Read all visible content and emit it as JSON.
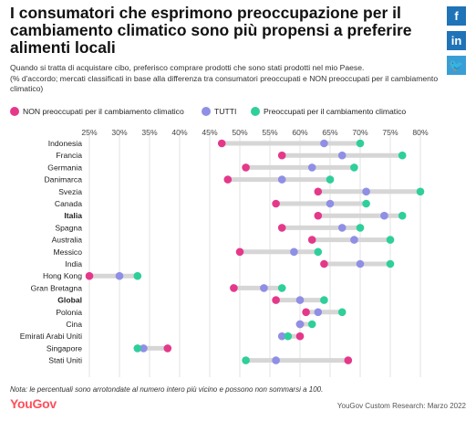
{
  "header": {
    "title": "I consumatori che esprimono preoccupazione per il cambiamento climatico sono più propensi a preferire alimenti locali",
    "subtitle_line1": "Quando si tratta di acquistare cibo, preferisco comprare prodotti che sono stati prodotti nel mio Paese.",
    "subtitle_line2": "(% d'accordo; mercati classificati in base alla differenza tra consumatori preoccupati e NON preoccupati per il cambiamento climatico)"
  },
  "share": {
    "facebook": "f",
    "linkedin": "in",
    "twitter": "🐦"
  },
  "legend": [
    {
      "label": "NON preoccupati per il cambiamento climatico",
      "color": "#e4398a"
    },
    {
      "label": "TUTTI",
      "color": "#8f8fe6"
    },
    {
      "label": "Preoccupati per il cambiamento climatico",
      "color": "#2fcf9b"
    }
  ],
  "footer": {
    "note": "Nota: le percentuali sono arrotondate al numero intero più vicino e possono non sommarsi a 100.",
    "logo": "YouGov",
    "source": "YouGov Custom Research: Marzo 2022"
  },
  "chart_data": {
    "type": "dot-plot",
    "x_ticks": [
      "25%",
      "30%",
      "35%",
      "40%",
      "45%",
      "50%",
      "55%",
      "60%",
      "65%",
      "70%",
      "75%",
      "80%"
    ],
    "xlim": [
      25,
      80
    ],
    "grid": true,
    "legend_position": "top-left",
    "series": [
      {
        "name": "NON preoccupati per il cambiamento climatico",
        "color": "#e4398a"
      },
      {
        "name": "TUTTI",
        "color": "#8f8fe6"
      },
      {
        "name": "Preoccupati per il cambiamento climatico",
        "color": "#2fcf9b"
      }
    ],
    "rows": [
      {
        "label": "Indonesia",
        "bold": false,
        "values": [
          47,
          64,
          70
        ]
      },
      {
        "label": "Francia",
        "bold": false,
        "values": [
          57,
          67,
          77
        ]
      },
      {
        "label": "Germania",
        "bold": false,
        "values": [
          51,
          62,
          69
        ]
      },
      {
        "label": "Danimarca",
        "bold": false,
        "values": [
          48,
          57,
          65
        ]
      },
      {
        "label": "Svezia",
        "bold": false,
        "values": [
          63,
          71,
          80
        ]
      },
      {
        "label": "Canada",
        "bold": false,
        "values": [
          56,
          65,
          71
        ]
      },
      {
        "label": "Italia",
        "bold": true,
        "values": [
          63,
          74,
          77
        ]
      },
      {
        "label": "Spagna",
        "bold": false,
        "values": [
          57,
          67,
          70
        ]
      },
      {
        "label": "Australia",
        "bold": false,
        "values": [
          62,
          69,
          75
        ]
      },
      {
        "label": "Messico",
        "bold": false,
        "values": [
          50,
          59,
          63
        ]
      },
      {
        "label": "India",
        "bold": false,
        "values": [
          64,
          70,
          75
        ]
      },
      {
        "label": "Hong Kong",
        "bold": false,
        "values": [
          25,
          30,
          33
        ]
      },
      {
        "label": "Gran Bretagna",
        "bold": false,
        "values": [
          49,
          54,
          57
        ]
      },
      {
        "label": "Global",
        "bold": true,
        "values": [
          56,
          60,
          64
        ]
      },
      {
        "label": "Polonia",
        "bold": false,
        "values": [
          61,
          63,
          67
        ]
      },
      {
        "label": "Cina",
        "bold": false,
        "values": [
          60,
          60,
          62
        ]
      },
      {
        "label": "Emirati Arabi Uniti",
        "bold": false,
        "values": [
          60,
          57,
          58
        ]
      },
      {
        "label": "Singapore",
        "bold": false,
        "values": [
          38,
          34,
          33
        ]
      },
      {
        "label": "Stati Uniti",
        "bold": false,
        "values": [
          68,
          56,
          51
        ]
      }
    ]
  }
}
